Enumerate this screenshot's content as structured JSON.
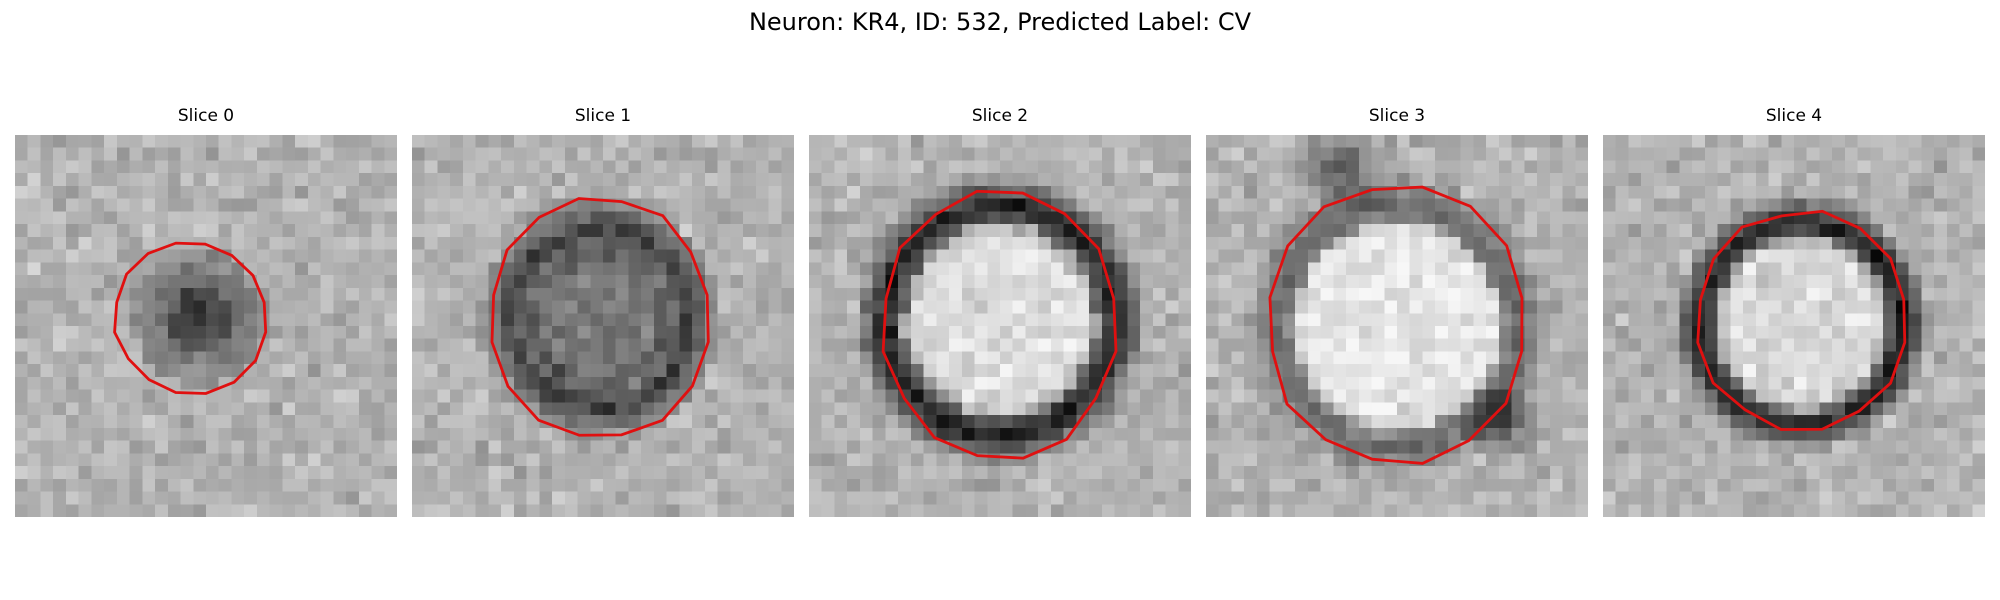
{
  "figure": {
    "title": "Neuron: KR4, ID: 532, Predicted Label: CV"
  },
  "panels": [
    {
      "title": "Slice 0"
    },
    {
      "title": "Slice 1"
    },
    {
      "title": "Slice 2"
    },
    {
      "title": "Slice 3"
    },
    {
      "title": "Slice 4"
    }
  ],
  "colors": {
    "contour": "#e01010",
    "background": "#ffffff"
  }
}
